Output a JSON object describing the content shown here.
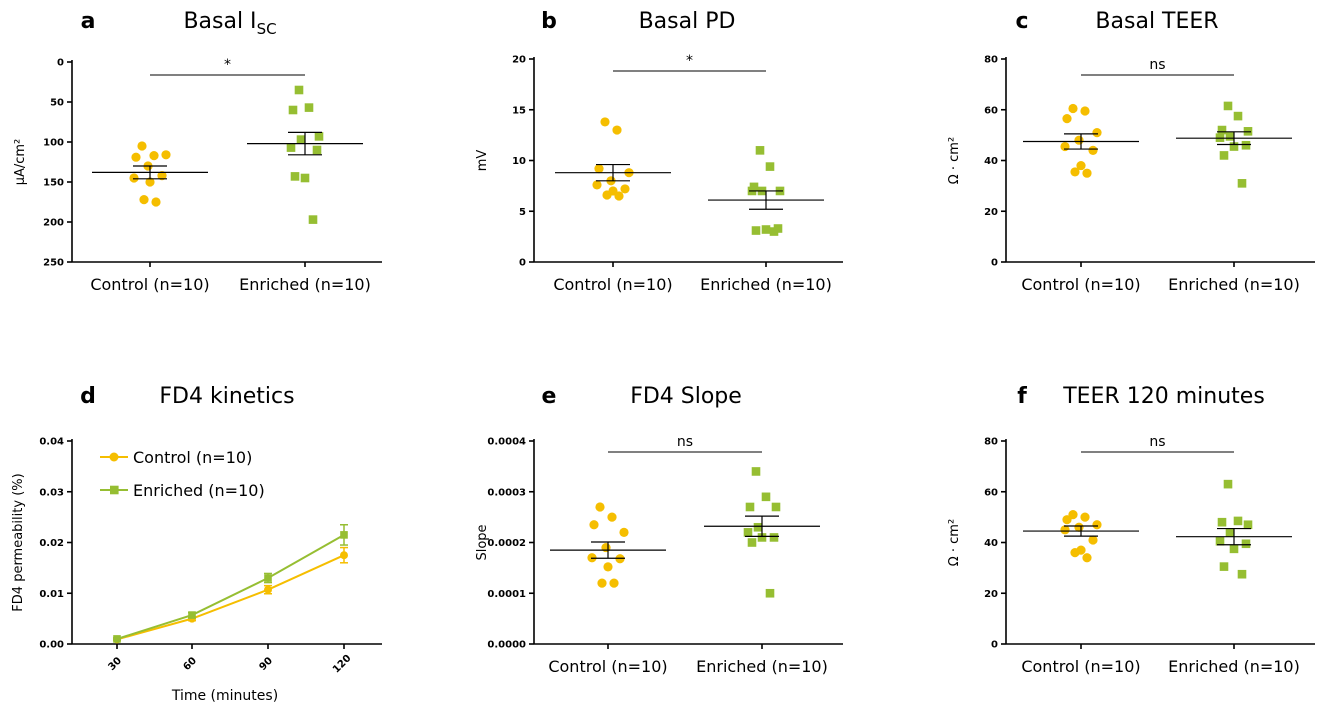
{
  "colors": {
    "control": "#F5BE00",
    "enriched": "#96BE32"
  },
  "chart_data": [
    {
      "id": "a",
      "type": "scatter",
      "letter": "a",
      "title": "Basal I",
      "title_sub": "SC",
      "ylabel": "μA/cm²",
      "ylim": [
        250,
        0
      ],
      "yticks": [
        0,
        50,
        100,
        150,
        200,
        250
      ],
      "inverted": true,
      "categories": [
        "Control (n=10)",
        "Enriched (n=10)"
      ],
      "series": [
        {
          "values": [
            105,
            117,
            119,
            116,
            130,
            145,
            142,
            150,
            172,
            175
          ],
          "mean": 138,
          "sem": 8
        },
        {
          "values": [
            35,
            57,
            60,
            93,
            97,
            107,
            110,
            145,
            143,
            197
          ],
          "mean": 102,
          "sem": 14
        }
      ],
      "significance": "*"
    },
    {
      "id": "b",
      "type": "scatter",
      "letter": "b",
      "title": "Basal PD",
      "ylabel": "mV",
      "ylim": [
        0,
        20
      ],
      "yticks": [
        0,
        5,
        10,
        15,
        20
      ],
      "categories": [
        "Control (n=10)",
        "Enriched (n=10)"
      ],
      "series": [
        {
          "values": [
            13.8,
            13.0,
            9.2,
            8.8,
            8.0,
            7.6,
            7.2,
            7.0,
            6.6,
            6.5
          ],
          "mean": 8.8,
          "sem": 0.8
        },
        {
          "values": [
            11.0,
            9.4,
            7.4,
            7.0,
            7.0,
            7.0,
            3.3,
            3.2,
            3.1,
            3.0
          ],
          "mean": 6.1,
          "sem": 0.9
        }
      ],
      "significance": "*"
    },
    {
      "id": "c",
      "type": "scatter",
      "letter": "c",
      "title": "Basal TEER",
      "ylabel": "Ω · cm²",
      "ylim": [
        0,
        80
      ],
      "yticks": [
        0,
        20,
        40,
        60,
        80
      ],
      "categories": [
        "Control (n=10)",
        "Enriched (n=10)"
      ],
      "series": [
        {
          "values": [
            60.5,
            59.5,
            56.5,
            51.0,
            48.0,
            45.5,
            44.0,
            38.0,
            35.5,
            35.0
          ],
          "mean": 47.5,
          "sem": 3
        },
        {
          "values": [
            61.5,
            57.5,
            52.0,
            51.5,
            49.5,
            49.0,
            46.0,
            45.5,
            42.0,
            31.0
          ],
          "mean": 48.8,
          "sem": 2.5
        }
      ],
      "significance": "ns"
    },
    {
      "id": "d",
      "type": "line",
      "letter": "d",
      "title": "FD4 kinetics",
      "ylabel": "FD4 permeability (%)",
      "xlabel": "Time (minutes)",
      "ylim": [
        0,
        0.04
      ],
      "yticks": [
        "0.00",
        "0.01",
        "0.02",
        "0.03",
        "0.04"
      ],
      "x": [
        30,
        60,
        90,
        120
      ],
      "series": [
        {
          "name": "Control (n=10)",
          "values": [
            0.0009,
            0.005,
            0.0107,
            0.0175
          ],
          "err": [
            0.0002,
            0.0004,
            0.0008,
            0.0015
          ],
          "marker": "circle"
        },
        {
          "name": "Enriched (n=10)",
          "values": [
            0.001,
            0.0057,
            0.013,
            0.0215
          ],
          "err": [
            0.0002,
            0.0005,
            0.0009,
            0.002
          ],
          "marker": "square"
        }
      ],
      "legend": "top-left"
    },
    {
      "id": "e",
      "type": "scatter",
      "letter": "e",
      "title": "FD4 Slope",
      "ylabel": "Slope",
      "ylim": [
        0,
        0.0004
      ],
      "yticks": [
        "0.0000",
        "0.0001",
        "0.0002",
        "0.0003",
        "0.0004"
      ],
      "categories": [
        "Control (n=10)",
        "Enriched (n=10)"
      ],
      "series": [
        {
          "values": [
            0.00027,
            0.00025,
            0.000235,
            0.00022,
            0.00019,
            0.00017,
            0.000168,
            0.000152,
            0.00012,
            0.00012
          ],
          "mean": 0.000185,
          "sem": 1.6e-05
        },
        {
          "values": [
            0.00034,
            0.00029,
            0.00027,
            0.00027,
            0.00023,
            0.00022,
            0.00021,
            0.00021,
            0.0002,
            0.0001
          ],
          "mean": 0.000232,
          "sem": 2e-05
        }
      ],
      "significance": "ns"
    },
    {
      "id": "f",
      "type": "scatter",
      "letter": "f",
      "title": "TEER 120 minutes",
      "ylabel": "Ω · cm²",
      "ylim": [
        0,
        80
      ],
      "yticks": [
        0,
        20,
        40,
        60,
        80
      ],
      "categories": [
        "Control (n=10)",
        "Enriched (n=10)"
      ],
      "series": [
        {
          "values": [
            51.0,
            50.0,
            49.0,
            47.0,
            46.0,
            45.0,
            41.0,
            37.0,
            36.0,
            34.0
          ],
          "mean": 44.5,
          "sem": 2
        },
        {
          "values": [
            63.0,
            48.5,
            48.0,
            47.0,
            44.0,
            40.5,
            39.5,
            37.5,
            30.5,
            27.5
          ],
          "mean": 42.3,
          "sem": 3.2
        }
      ],
      "significance": "ns"
    }
  ]
}
